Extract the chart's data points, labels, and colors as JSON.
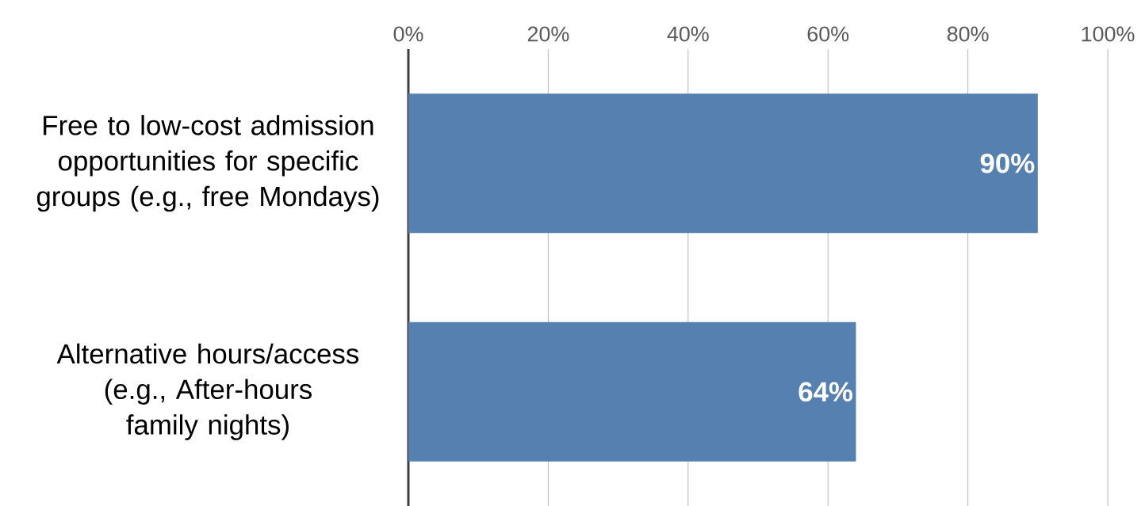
{
  "chart_data": {
    "type": "bar",
    "orientation": "horizontal",
    "categories": [
      "Free to low-cost admission opportunities for specific groups (e.g., free Mondays)",
      "Alternative hours/access (e.g., After-hours family nights)"
    ],
    "values": [
      90,
      64
    ],
    "color": "#5580b0",
    "value_labels": [
      "90%",
      "64%"
    ],
    "xlim": [
      0,
      100
    ],
    "xticks": [
      {
        "value": 0,
        "label": "0%"
      },
      {
        "value": 20,
        "label": "20%"
      },
      {
        "value": 40,
        "label": "40%"
      },
      {
        "value": 60,
        "label": "60%"
      },
      {
        "value": 80,
        "label": "80%"
      },
      {
        "value": 100,
        "label": "100%"
      }
    ],
    "grid": "x"
  }
}
